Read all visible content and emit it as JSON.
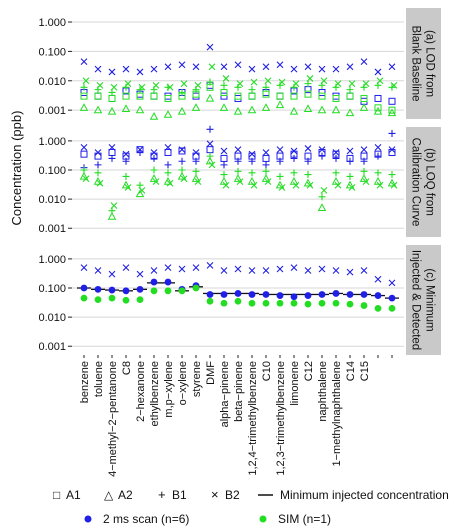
{
  "colors": {
    "scan_2ms": "#1f1fe8",
    "sim": "#22dd22",
    "strip_bg": "#c9c9c9",
    "grid": "#d7d7d7",
    "min_line": "#111111",
    "text": "#111111"
  },
  "y_axis_label": "Concentration (ppb)",
  "chart_data": [
    {
      "type": "scatter",
      "panel_label": "(a) LOD from Blank Baseline",
      "panel_label_lines": [
        "(a) LOD from",
        "Blank Baseline"
      ],
      "yscale": "log",
      "ylim": [
        0.0005,
        3
      ],
      "yticks": [
        "0.001",
        "0.010",
        "0.100",
        "1.000"
      ],
      "ytick_values": [
        0.001,
        0.01,
        0.1,
        1
      ],
      "grid": true,
      "series": [
        {
          "group": "2 ms scan (n=6)",
          "marker": "A1",
          "values": [
            0.004,
            0.003,
            0.0025,
            0.0045,
            0.0035,
            0.003,
            0.003,
            0.004,
            0.003,
            0.007,
            0.003,
            0.0025,
            0.003,
            0.004,
            0.003,
            0.0045,
            0.005,
            0.004,
            0.003,
            0.003,
            0.002,
            0.0025,
            0.002
          ]
        },
        {
          "group": "2 ms scan (n=6)",
          "marker": "B2",
          "values": [
            0.045,
            0.025,
            0.02,
            0.025,
            0.02,
            0.025,
            0.03,
            0.035,
            0.03,
            0.14,
            0.03,
            0.035,
            0.025,
            0.03,
            0.035,
            0.025,
            0.03,
            0.025,
            0.025,
            0.03,
            0.045,
            0.02,
            0.03
          ]
        },
        {
          "group": "SIM (n=1)",
          "marker": "A2",
          "values": [
            0.0012,
            0.001,
            0.0009,
            0.0011,
            0.001,
            0.0006,
            0.0007,
            0.0009,
            0.0012,
            0.0025,
            0.0012,
            0.0009,
            0.001,
            0.0012,
            0.0015,
            0.0009,
            0.0011,
            0.001,
            0.001,
            0.0008,
            0.0012,
            0.0009,
            0.0008
          ]
        },
        {
          "group": "SIM (n=1)",
          "marker": "B1",
          "values": [
            0.006,
            0.005,
            0.004,
            0.006,
            0.005,
            0.005,
            0.006,
            0.004,
            0.005,
            0.009,
            0.007,
            0.006,
            0.005,
            0.006,
            0.007,
            0.006,
            0.008,
            0.007,
            0.006,
            0.005,
            0.006,
            0.007,
            0.006
          ]
        },
        {
          "group": "SIM (n=1)",
          "marker": "A1",
          "values": [
            0.003,
            0.003,
            0.0025,
            0.003,
            0.003,
            0.003,
            0.0025,
            0.003,
            0.0035,
            0.006,
            0.004,
            0.003,
            0.003,
            0.0035,
            0.003,
            0.003,
            0.0035,
            0.003,
            0.0025,
            0.003,
            0.0025,
            0.0012,
            0.001
          ]
        },
        {
          "group": "SIM (n=1)",
          "marker": "B2",
          "values": [
            0.01,
            0.007,
            0.006,
            0.008,
            0.006,
            0.007,
            0.006,
            0.008,
            0.007,
            0.03,
            0.012,
            0.008,
            0.009,
            0.01,
            0.009,
            0.008,
            0.012,
            0.01,
            0.008,
            0.008,
            0.008,
            0.01,
            0.007
          ]
        }
      ]
    },
    {
      "type": "scatter",
      "panel_label": "(b) LOQ from Calibration Curve",
      "panel_label_lines": [
        "(b) LOQ from",
        "Calibration Curve"
      ],
      "yscale": "log",
      "ylim": [
        0.0005,
        3
      ],
      "yticks": [
        "0.001",
        "0.010",
        "0.100",
        "1.000"
      ],
      "ytick_values": [
        0.001,
        0.01,
        0.1,
        1
      ],
      "grid": true,
      "series": [
        {
          "group": "2 ms scan (n=6)",
          "marker": "A1",
          "values": [
            0.35,
            0.3,
            0.4,
            0.3,
            0.5,
            0.3,
            0.4,
            0.45,
            0.3,
            0.5,
            0.25,
            0.3,
            0.3,
            0.25,
            0.3,
            0.35,
            0.3,
            0.4,
            0.35,
            0.25,
            0.3,
            0.35,
            0.4
          ]
        },
        {
          "group": "2 ms scan (n=6)",
          "marker": "B1",
          "values": [
            0.12,
            0.15,
            0.25,
            0.2,
            0.4,
            0.25,
            0.15,
            0.2,
            0.2,
            2.5,
            0.15,
            0.2,
            0.2,
            0.15,
            0.2,
            0.25,
            0.2,
            0.3,
            0.25,
            0.2,
            0.2,
            0.3,
            1.8
          ]
        },
        {
          "group": "2 ms scan (n=6)",
          "marker": "B2",
          "values": [
            0.6,
            0.4,
            0.6,
            0.35,
            0.5,
            0.4,
            0.6,
            0.5,
            0.4,
            0.8,
            0.45,
            0.5,
            0.35,
            0.4,
            0.5,
            0.45,
            0.55,
            0.5,
            0.4,
            0.45,
            0.5,
            0.6,
            0.5
          ]
        },
        {
          "group": "SIM (n=1)",
          "marker": "A2",
          "values": [
            0.06,
            0.04,
            0.0025,
            0.03,
            0.015,
            0.05,
            0.04,
            0.06,
            0.05,
            0.2,
            0.04,
            0.05,
            0.04,
            0.05,
            0.03,
            0.04,
            0.035,
            0.005,
            0.04,
            0.03,
            0.05,
            0.04,
            0.035
          ]
        },
        {
          "group": "SIM (n=1)",
          "marker": "B1",
          "values": [
            0.1,
            0.08,
            0.004,
            0.06,
            0.03,
            0.1,
            0.08,
            0.1,
            0.09,
            0.3,
            0.07,
            0.09,
            0.08,
            0.09,
            0.06,
            0.08,
            0.07,
            0.012,
            0.08,
            0.06,
            0.09,
            0.08,
            0.07
          ]
        },
        {
          "group": "SIM (n=1)",
          "marker": "B2",
          "values": [
            0.05,
            0.035,
            0.006,
            0.025,
            0.02,
            0.04,
            0.035,
            0.05,
            0.04,
            0.15,
            0.03,
            0.04,
            0.03,
            0.04,
            0.025,
            0.03,
            0.03,
            0.02,
            0.03,
            0.025,
            0.04,
            0.03,
            0.03
          ]
        }
      ]
    },
    {
      "type": "scatter",
      "panel_label": "(c) Minimum Injected & Detected",
      "panel_label_lines": [
        "(c) Minimum",
        "Injected & Detected"
      ],
      "yscale": "log",
      "ylim": [
        0.0005,
        3
      ],
      "yticks": [
        "0.001",
        "0.010",
        "0.100",
        "1.000"
      ],
      "ytick_values": [
        0.001,
        0.01,
        0.1,
        1
      ],
      "grid": true,
      "series": [
        {
          "group": "2 ms scan (n=6)",
          "marker": "filled-circle",
          "values": [
            0.1,
            0.09,
            0.085,
            0.08,
            0.09,
            0.16,
            0.16,
            0.09,
            0.12,
            0.06,
            0.06,
            0.065,
            0.06,
            0.06,
            0.055,
            0.05,
            0.055,
            0.06,
            0.065,
            0.06,
            0.06,
            0.055,
            0.045
          ]
        },
        {
          "group": "2 ms scan (n=6)",
          "marker": "B2",
          "values": [
            0.5,
            0.4,
            0.3,
            0.5,
            0.3,
            0.4,
            0.5,
            0.45,
            0.5,
            0.6,
            0.4,
            0.45,
            0.4,
            0.4,
            0.45,
            0.5,
            0.4,
            0.45,
            0.4,
            0.35,
            0.4,
            0.2,
            0.15
          ]
        },
        {
          "group": "SIM (n=1)",
          "marker": "filled-circle",
          "values": [
            0.045,
            0.04,
            0.045,
            0.038,
            0.04,
            0.08,
            0.08,
            0.08,
            0.1,
            0.035,
            0.03,
            0.035,
            0.03,
            0.03,
            0.03,
            0.03,
            0.028,
            0.03,
            0.03,
            0.028,
            0.025,
            0.02,
            0.02
          ]
        }
      ],
      "min_injected_concentration": [
        0.1,
        0.09,
        0.085,
        0.08,
        0.09,
        0.15,
        0.15,
        0.08,
        0.11,
        0.065,
        0.065,
        0.065,
        0.065,
        0.06,
        0.06,
        0.06,
        0.06,
        0.06,
        0.065,
        0.06,
        0.06,
        0.055,
        0.045
      ]
    }
  ],
  "categories": [
    "benzene",
    "toluene",
    "4−methyl−2−pentanone",
    "C8",
    "2−hexanone",
    "ethylbenzene",
    "m,p−xylene",
    "o−xylene",
    "styrene",
    "DMF",
    "alpha−pinene",
    "beta−pinene",
    "1,2,4−trimethylbenzene",
    "C10",
    "1,2,3−trimethylbenzene",
    "limonene",
    "C12",
    "naphthalene",
    "1−methylnaphthalene",
    "C14",
    "C15",
    "",
    ""
  ],
  "legend": {
    "markers": [
      {
        "symbol": "□",
        "label": "A1"
      },
      {
        "symbol": "△",
        "label": "A2"
      },
      {
        "symbol": "+",
        "label": "B1"
      },
      {
        "symbol": "×",
        "label": "B2"
      }
    ],
    "line_label": "Minimum injected concentration",
    "groups": [
      {
        "label": "2 ms scan (n=6)",
        "color_key": "scan_2ms"
      },
      {
        "label": "SIM (n=1)",
        "color_key": "sim"
      }
    ]
  }
}
